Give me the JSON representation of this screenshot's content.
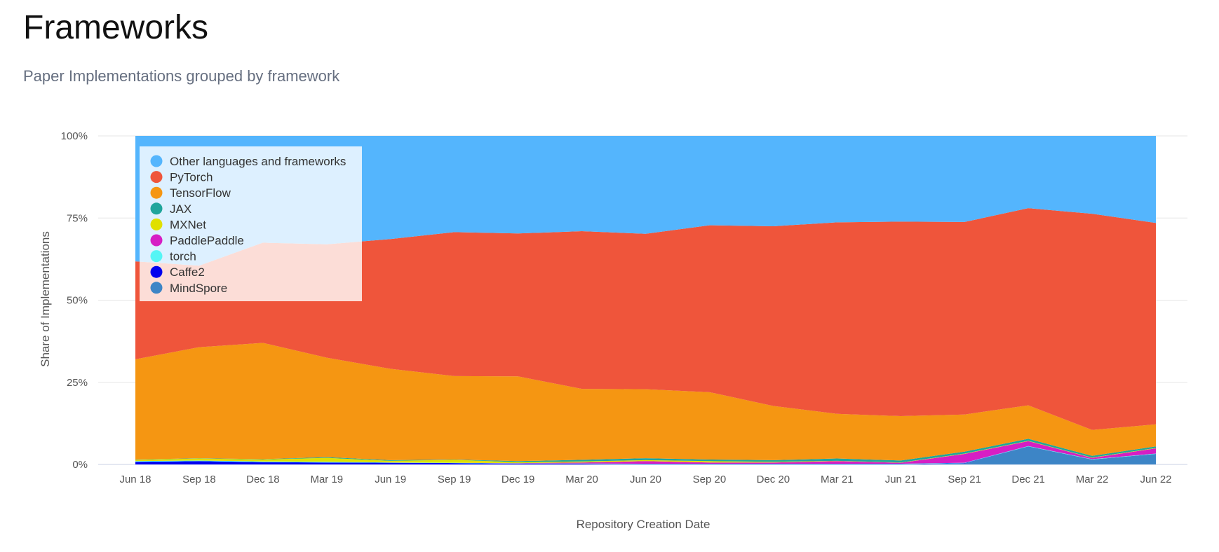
{
  "header": {
    "title": "Frameworks",
    "subtitle": "Paper Implementations grouped by framework"
  },
  "chart_data": {
    "type": "area",
    "stacked": true,
    "normalized": true,
    "title": "",
    "xlabel": "Repository Creation Date",
    "ylabel": "Share of Implementations",
    "ylim": [
      0,
      100
    ],
    "y_unit": "%",
    "y_ticks": [
      "0%",
      "25%",
      "50%",
      "75%",
      "100%"
    ],
    "grid": true,
    "legend_position": "top-left",
    "x": [
      "Jun 18",
      "Sep 18",
      "Dec 18",
      "Mar 19",
      "Jun 19",
      "Sep 19",
      "Dec 19",
      "Mar 20",
      "Jun 20",
      "Sep 20",
      "Dec 20",
      "Mar 21",
      "Jun 21",
      "Sep 21",
      "Dec 21",
      "Mar 22",
      "Jun 22"
    ],
    "series": [
      {
        "name": "MindSpore",
        "color": "#3d85c6",
        "values": [
          0,
          0,
          0,
          0,
          0,
          0,
          0,
          0,
          0,
          0,
          0,
          0,
          0,
          0.3,
          5.5,
          1.5,
          3.2
        ]
      },
      {
        "name": "Caffe2",
        "color": "#0000ee",
        "values": [
          0.8,
          1.0,
          0.7,
          0.6,
          0.5,
          0.4,
          0.2,
          0.2,
          0.1,
          0.1,
          0.1,
          0.1,
          0.1,
          0.1,
          0,
          0,
          0
        ]
      },
      {
        "name": "torch",
        "color": "#55f5f5",
        "values": [
          0.2,
          0.2,
          0.2,
          0.2,
          0.1,
          0.1,
          0.1,
          0.1,
          0.1,
          0.1,
          0.1,
          0.1,
          0.1,
          0.1,
          0.1,
          0.1,
          0.1
        ]
      },
      {
        "name": "PaddlePaddle",
        "color": "#d61ec4",
        "values": [
          0,
          0,
          0,
          0,
          0,
          0,
          0.1,
          0.3,
          0.8,
          0.4,
          0.4,
          0.8,
          0.3,
          2.7,
          1.5,
          0.4,
          1.6
        ]
      },
      {
        "name": "MXNet",
        "color": "#e0e000",
        "values": [
          0.4,
          0.6,
          0.6,
          1.2,
          0.5,
          0.9,
          0.3,
          0.3,
          0.3,
          0.4,
          0.2,
          0.1,
          0.1,
          0.1,
          0.1,
          0.1,
          0.1
        ]
      },
      {
        "name": "JAX",
        "color": "#1fa59b",
        "values": [
          0.1,
          0.1,
          0.1,
          0.2,
          0.2,
          0.1,
          0.3,
          0.5,
          0.6,
          0.5,
          0.5,
          0.7,
          0.6,
          0.6,
          0.6,
          0.5,
          0.5
        ]
      },
      {
        "name": "TensorFlow",
        "color": "#f59612",
        "values": [
          30.5,
          33.8,
          35.4,
          30.3,
          27.8,
          25.4,
          25.8,
          21.6,
          21.0,
          20.5,
          16.5,
          13.6,
          13.5,
          11.3,
          10.2,
          7.9,
          6.7
        ]
      },
      {
        "name": "PyTorch",
        "color": "#ef553b",
        "values": [
          29.8,
          24.8,
          30.5,
          34.5,
          39.5,
          43.8,
          43.5,
          48.0,
          47.3,
          50.8,
          54.7,
          58.3,
          59.2,
          58.6,
          60.0,
          65.8,
          61.3
        ]
      },
      {
        "name": "Other languages and frameworks",
        "color": "#54b5fd",
        "values": [
          38.2,
          39.5,
          32.5,
          33.0,
          31.4,
          29.3,
          29.7,
          29.0,
          29.8,
          27.2,
          27.5,
          26.3,
          26.1,
          26.2,
          22.0,
          23.7,
          26.5
        ]
      }
    ],
    "legend_order": [
      "Other languages and frameworks",
      "PyTorch",
      "TensorFlow",
      "JAX",
      "MXNet",
      "PaddlePaddle",
      "torch",
      "Caffe2",
      "MindSpore"
    ]
  }
}
